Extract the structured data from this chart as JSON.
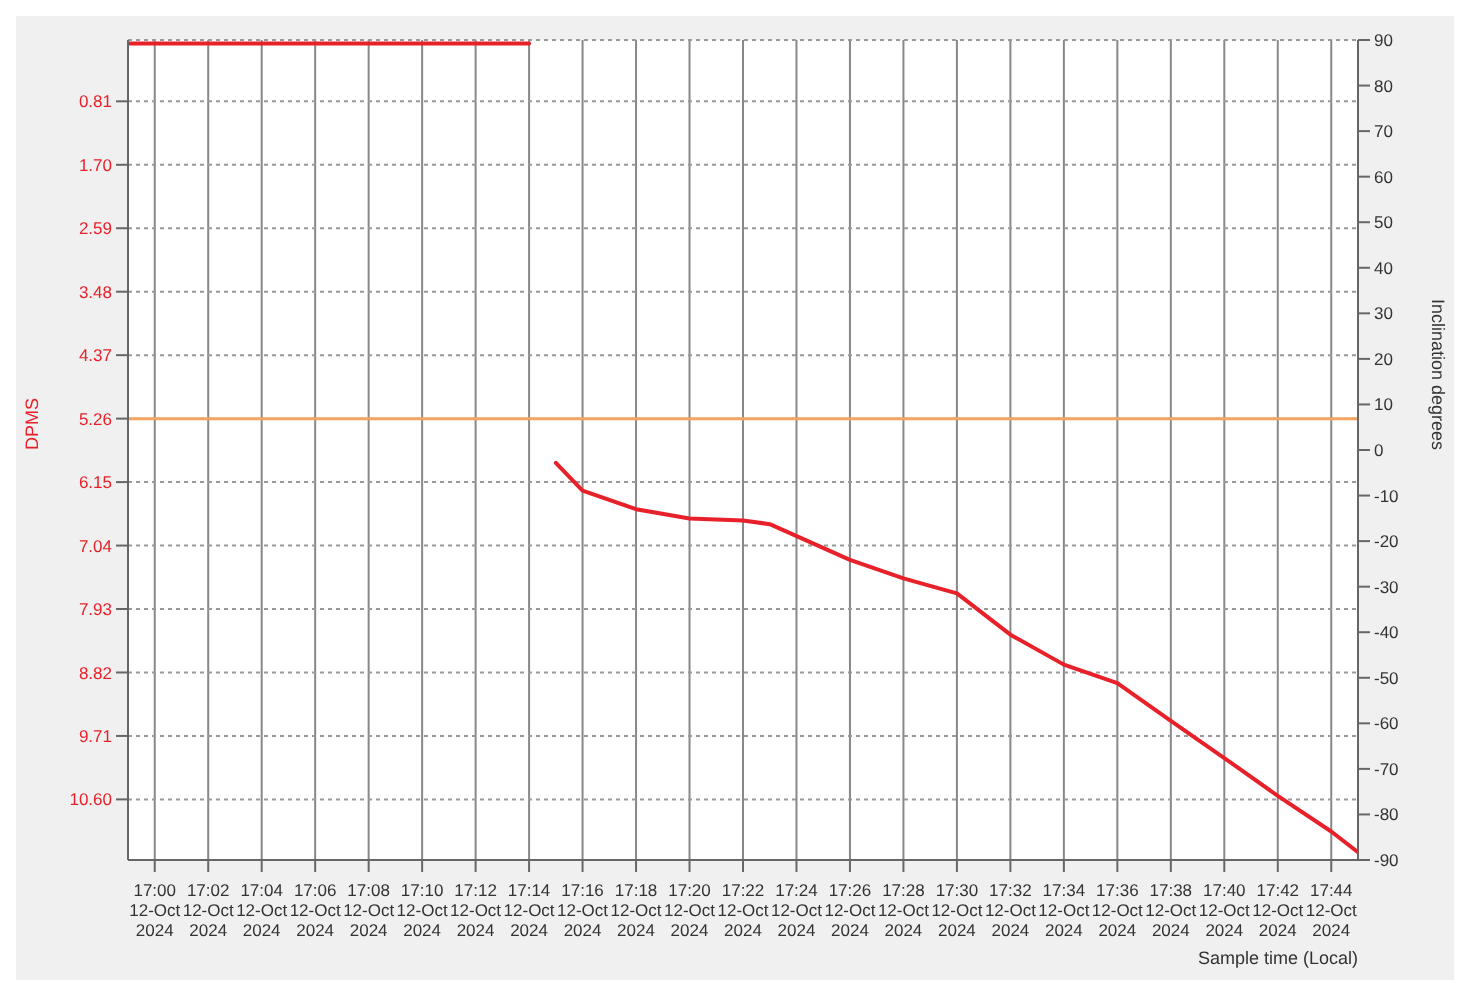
{
  "chart_data": {
    "type": "line",
    "xlabel": "Sample time (Local)",
    "ylabel": "DPMS",
    "y2label": "Inclination degrees",
    "xlim": [
      "2024-10-12T16:59",
      "2024-10-12T17:45"
    ],
    "xticks": [
      {
        "value": "2024-10-12T17:00",
        "label": "17:00\n12-Oct\n2024"
      },
      {
        "value": "2024-10-12T17:02",
        "label": "17:02\n12-Oct\n2024"
      },
      {
        "value": "2024-10-12T17:04",
        "label": "17:04\n12-Oct\n2024"
      },
      {
        "value": "2024-10-12T17:06",
        "label": "17:06\n12-Oct\n2024"
      },
      {
        "value": "2024-10-12T17:08",
        "label": "17:08\n12-Oct\n2024"
      },
      {
        "value": "2024-10-12T17:10",
        "label": "17:10\n12-Oct\n2024"
      },
      {
        "value": "2024-10-12T17:12",
        "label": "17:12\n12-Oct\n2024"
      },
      {
        "value": "2024-10-12T17:14",
        "label": "17:14\n12-Oct\n2024"
      },
      {
        "value": "2024-10-12T17:16",
        "label": "17:16\n12-Oct\n2024"
      },
      {
        "value": "2024-10-12T17:18",
        "label": "17:18\n12-Oct\n2024"
      },
      {
        "value": "2024-10-12T17:20",
        "label": "17:20\n12-Oct\n2024"
      },
      {
        "value": "2024-10-12T17:22",
        "label": "17:22\n12-Oct\n2024"
      },
      {
        "value": "2024-10-12T17:24",
        "label": "17:24\n12-Oct\n2024"
      },
      {
        "value": "2024-10-12T17:26",
        "label": "17:26\n12-Oct\n2024"
      },
      {
        "value": "2024-10-12T17:28",
        "label": "17:28\n12-Oct\n2024"
      },
      {
        "value": "2024-10-12T17:30",
        "label": "17:30\n12-Oct\n2024"
      },
      {
        "value": "2024-10-12T17:32",
        "label": "17:32\n12-Oct\n2024"
      },
      {
        "value": "2024-10-12T17:34",
        "label": "17:34\n12-Oct\n2024"
      },
      {
        "value": "2024-10-12T17:36",
        "label": "17:36\n12-Oct\n2024"
      },
      {
        "value": "2024-10-12T17:38",
        "label": "17:38\n12-Oct\n2024"
      },
      {
        "value": "2024-10-12T17:40",
        "label": "17:40\n12-Oct\n2024"
      },
      {
        "value": "2024-10-12T17:42",
        "label": "17:42\n12-Oct\n2024"
      },
      {
        "value": "2024-10-12T17:44",
        "label": "17:44\n12-Oct\n2024"
      }
    ],
    "ylim": [
      11.45,
      -0.05
    ],
    "yticks": [
      0.81,
      {
        "value": 1.7,
        "label": "1.70"
      },
      2.59,
      3.48,
      4.37,
      5.26,
      6.15,
      7.04,
      7.93,
      8.82,
      9.71,
      {
        "value": 10.6,
        "label": "10.60"
      }
    ],
    "y2lim": [
      -90,
      90
    ],
    "y2ticks": [
      -90,
      -80,
      -70,
      -60,
      -50,
      -40,
      -30,
      -20,
      -10,
      0,
      10,
      20,
      30,
      40,
      50,
      60,
      70,
      80,
      90
    ],
    "grid": true,
    "line_style": "solid",
    "marker": "none",
    "ref_lines": [
      {
        "axis": "y",
        "value": 5.26,
        "color": "#f4a460"
      }
    ],
    "series": [
      {
        "color": "#e8202a",
        "x": [
          "2024-10-12T16:59",
          "2024-10-12T17:14"
        ],
        "values": [
          0,
          0
        ]
      },
      {
        "color": "#e8202a",
        "x": [
          "2024-10-12T17:15",
          "2024-10-12T17:16",
          "2024-10-12T17:18",
          "2024-10-12T17:20",
          "2024-10-12T17:22",
          "2024-10-12T17:23",
          "2024-10-12T17:26",
          "2024-10-12T17:28",
          "2024-10-12T17:30",
          "2024-10-12T17:32",
          "2024-10-12T17:34",
          "2024-10-12T17:36",
          "2024-10-12T17:38",
          "2024-10-12T17:40",
          "2024-10-12T17:42",
          "2024-10-12T17:44",
          "2024-10-12T17:45"
        ],
        "values": [
          5.88,
          6.27,
          6.53,
          6.66,
          6.69,
          6.74,
          7.24,
          7.5,
          7.71,
          8.29,
          8.71,
          8.97,
          9.5,
          10.02,
          10.55,
          11.05,
          11.34
        ]
      }
    ]
  }
}
